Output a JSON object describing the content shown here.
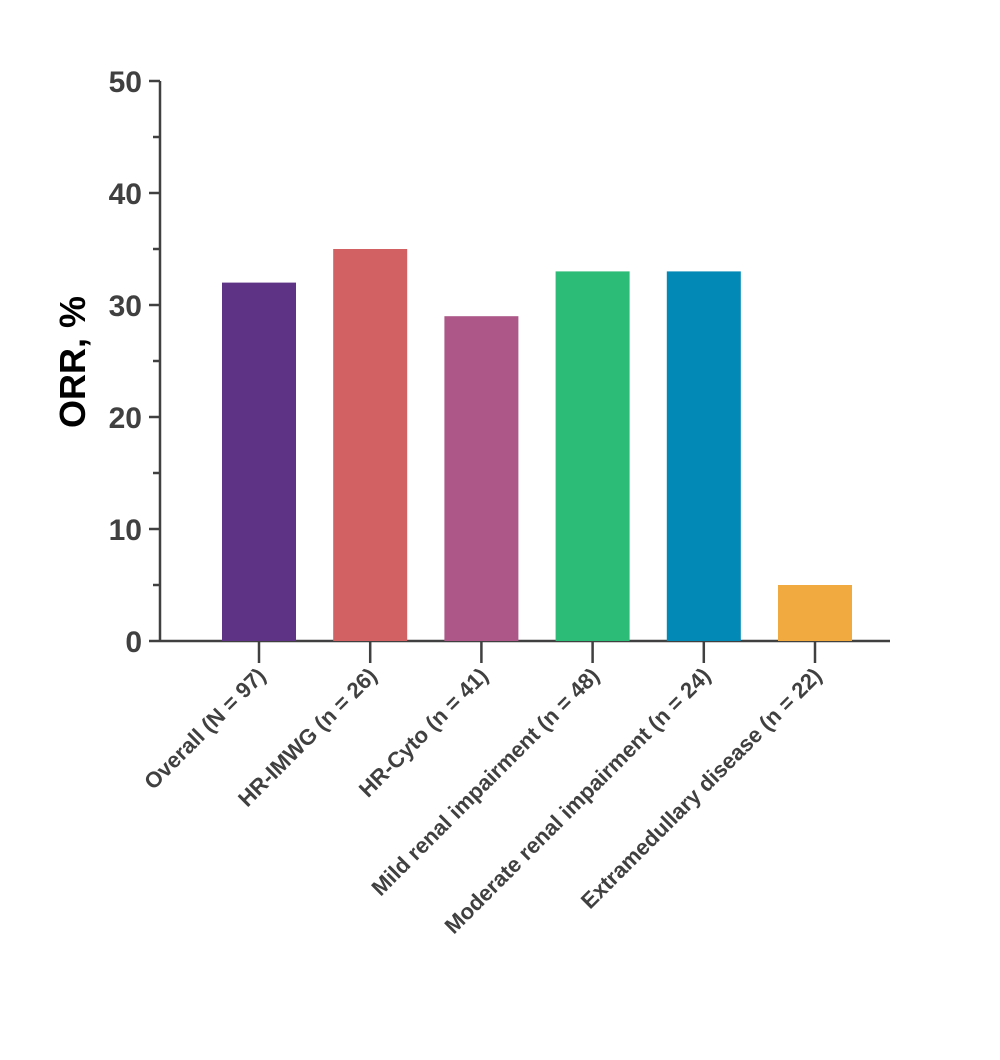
{
  "chart_data": {
    "type": "bar",
    "title": "",
    "xlabel": "",
    "ylabel": "ORR, %",
    "ylim": [
      0,
      50
    ],
    "yticks": [
      0,
      10,
      20,
      30,
      40,
      50
    ],
    "grid": false,
    "categories": [
      "Overall (N = 97)",
      "HR-IMWG (n = 26)",
      "HR-Cyto (n = 41)",
      "Mild renal impairment (n = 48)",
      "Moderate renal impairment (n = 24)",
      "Extramedullary disease (n = 22)"
    ],
    "values": [
      32,
      35,
      29,
      33,
      33,
      5
    ],
    "colors": [
      "#5e3386",
      "#d26163",
      "#ad5789",
      "#2dbb78",
      "#0389b6",
      "#f1aa3f"
    ]
  }
}
